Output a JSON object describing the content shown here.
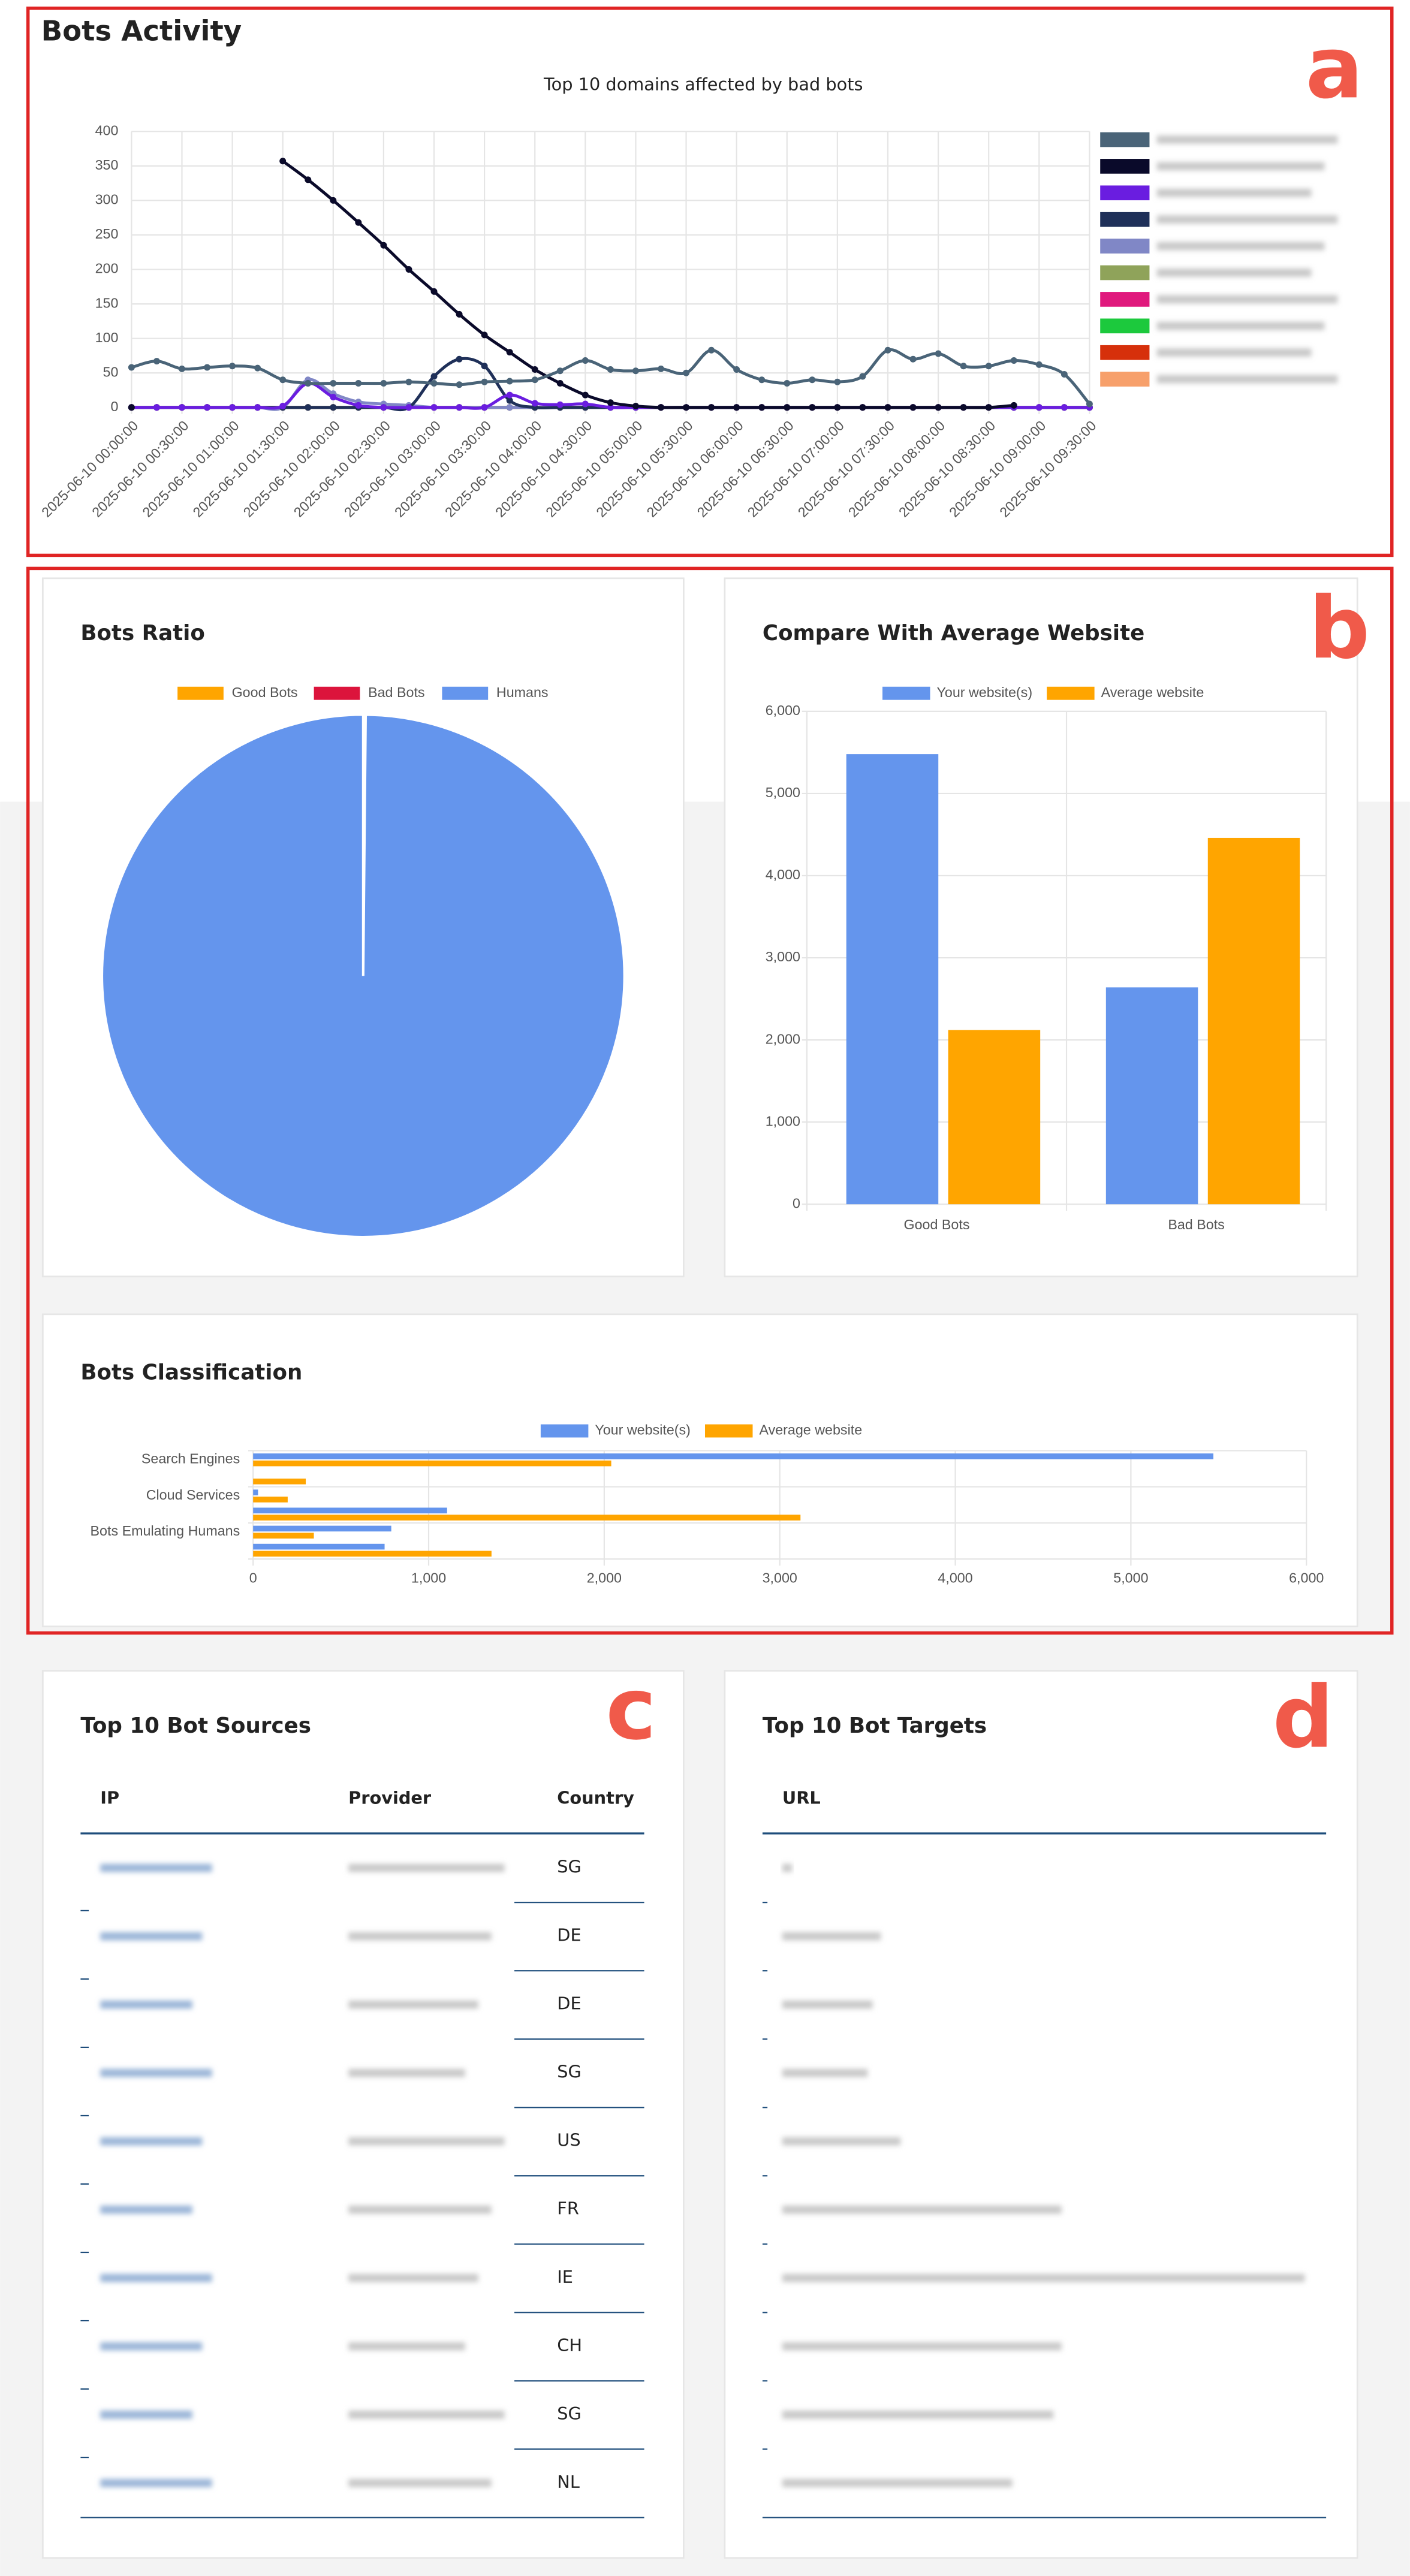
{
  "annotations": [
    "a",
    "b",
    "c",
    "d"
  ],
  "bots_activity": {
    "type": "line",
    "heading": "Bots Activity",
    "title": "Top 10 domains affected by bad bots",
    "categories": [
      "2025-06-10 00:00:00",
      null,
      "2025-06-10 00:30:00",
      null,
      "2025-06-10 01:00:00",
      null,
      "2025-06-10 01:30:00",
      null,
      "2025-06-10 02:00:00",
      null,
      "2025-06-10 02:30:00",
      null,
      "2025-06-10 03:00:00",
      null,
      "2025-06-10 03:30:00",
      null,
      "2025-06-10 04:00:00",
      null,
      "2025-06-10 04:30:00",
      null,
      "2025-06-10 05:00:00",
      null,
      "2025-06-10 05:30:00",
      null,
      "2025-06-10 06:00:00",
      null,
      "2025-06-10 06:30:00",
      null,
      "2025-06-10 07:00:00",
      null,
      "2025-06-10 07:30:00",
      null,
      "2025-06-10 08:00:00",
      null,
      "2025-06-10 08:30:00",
      null,
      "2025-06-10 09:00:00",
      null,
      "2025-06-10 09:30:00"
    ],
    "ylim": [
      0,
      400
    ],
    "yticks": [
      0,
      50,
      100,
      150,
      200,
      250,
      300,
      350,
      400
    ],
    "grid": true,
    "legend": "right",
    "series": [
      {
        "color": "#4a6478",
        "values": [
          58,
          67,
          56,
          58,
          60,
          57,
          40,
          35,
          35,
          35,
          35,
          37,
          35,
          33,
          37,
          38,
          40,
          53,
          68,
          55,
          53,
          56,
          50,
          83,
          55,
          40,
          35,
          40,
          37,
          45,
          83,
          70,
          78,
          60,
          60,
          68,
          62,
          48,
          5
        ]
      },
      {
        "color": "#0a0a2a",
        "values": [
          0,
          null,
          null,
          null,
          null,
          null,
          357,
          330,
          300,
          268,
          235,
          200,
          168,
          135,
          105,
          80,
          55,
          35,
          18,
          7,
          2,
          0,
          0,
          0,
          0,
          0,
          0,
          0,
          0,
          0,
          0,
          0,
          0,
          0,
          0,
          3,
          null,
          null,
          null
        ]
      },
      {
        "color": "#6a1de0",
        "values": [
          0,
          0,
          0,
          0,
          0,
          0,
          2,
          35,
          15,
          3,
          0,
          0,
          0,
          0,
          0,
          18,
          6,
          4,
          5,
          0,
          0,
          0,
          0,
          0,
          0,
          0,
          0,
          0,
          0,
          0,
          0,
          0,
          0,
          0,
          0,
          0,
          0,
          0,
          0
        ]
      },
      {
        "color": "#1f3059",
        "values": [
          0,
          0,
          0,
          0,
          0,
          0,
          0,
          0,
          0,
          0,
          0,
          0,
          45,
          70,
          60,
          10,
          0,
          0,
          0,
          0,
          0,
          0,
          0,
          0,
          0,
          0,
          0,
          0,
          0,
          0,
          0,
          0,
          0,
          0,
          0,
          0,
          0,
          0,
          0
        ]
      },
      {
        "color": "#8087c6",
        "values": [
          0,
          0,
          0,
          0,
          0,
          0,
          0,
          40,
          20,
          8,
          5,
          3,
          0,
          0,
          0,
          0,
          0,
          0,
          0,
          0,
          0,
          0,
          0,
          0,
          0,
          0,
          0,
          0,
          0,
          0,
          0,
          0,
          0,
          0,
          0,
          0,
          0,
          0,
          0
        ]
      },
      {
        "color": "#8fa35a",
        "values": [
          0,
          0,
          0,
          0,
          0,
          0,
          0,
          0,
          0,
          0,
          0,
          0,
          0,
          0,
          0,
          0,
          0,
          0,
          0,
          0,
          0,
          0,
          0,
          0,
          0,
          0,
          0,
          0,
          0,
          0,
          0,
          0,
          0,
          0,
          0,
          0,
          0,
          0,
          0
        ]
      },
      {
        "color": "#e0197d",
        "values": [
          0,
          0,
          0,
          0,
          0,
          0,
          0,
          0,
          0,
          0,
          0,
          0,
          0,
          0,
          0,
          0,
          0,
          0,
          0,
          0,
          0,
          0,
          0,
          0,
          0,
          0,
          0,
          0,
          0,
          0,
          0,
          0,
          0,
          0,
          0,
          0,
          0,
          0,
          0
        ]
      },
      {
        "color": "#1cc93d",
        "values": [
          0,
          0,
          0,
          0,
          0,
          0,
          0,
          0,
          0,
          0,
          0,
          0,
          0,
          0,
          0,
          0,
          0,
          0,
          0,
          0,
          0,
          0,
          0,
          0,
          0,
          0,
          0,
          0,
          0,
          0,
          0,
          0,
          0,
          0,
          0,
          0,
          0,
          0,
          0
        ]
      },
      {
        "color": "#d6300b",
        "values": [
          0,
          0,
          0,
          0,
          0,
          0,
          0,
          0,
          0,
          0,
          0,
          0,
          0,
          0,
          0,
          0,
          0,
          0,
          0,
          0,
          0,
          0,
          0,
          0,
          0,
          0,
          0,
          0,
          0,
          0,
          0,
          0,
          0,
          0,
          0,
          0,
          0,
          0,
          0
        ]
      },
      {
        "color": "#f7a06b",
        "values": [
          0,
          0,
          0,
          0,
          0,
          0,
          0,
          0,
          0,
          0,
          0,
          0,
          0,
          0,
          0,
          0,
          0,
          0,
          0,
          0,
          0,
          0,
          0,
          0,
          0,
          0,
          0,
          0,
          0,
          0,
          0,
          0,
          0,
          0,
          0,
          0,
          0,
          0,
          0
        ]
      }
    ]
  },
  "bots_ratio": {
    "type": "pie",
    "title": "Bots Ratio",
    "categories": [
      "Good Bots",
      "Bad Bots",
      "Humans"
    ],
    "colors": [
      "#ffa500",
      "#dc143c",
      "#6495ed"
    ],
    "values": [
      0.1,
      0.05,
      99.85
    ],
    "legend": "top"
  },
  "compare": {
    "type": "bar",
    "title": "Compare With Average Website",
    "categories": [
      "Good Bots",
      "Bad Bots"
    ],
    "series": [
      {
        "name": "Your website(s)",
        "color": "#6495ed",
        "values": [
          5480,
          2640
        ]
      },
      {
        "name": "Average website",
        "color": "#ffa500",
        "values": [
          2120,
          4460
        ]
      }
    ],
    "ylim": [
      0,
      6000
    ],
    "yticks": [
      0,
      {
        "value": 1000,
        "label": "1,000"
      },
      {
        "value": 2000,
        "label": "2,000"
      },
      {
        "value": 3000,
        "label": "3,000"
      },
      {
        "value": 4000,
        "label": "4,000"
      },
      {
        "value": 5000,
        "label": "5,000"
      },
      {
        "value": 6000,
        "label": "6,000"
      }
    ],
    "grid": true,
    "legend": "top"
  },
  "classification": {
    "type": "barh",
    "title": "Bots Classification",
    "categories": [
      "Search Engines",
      null,
      "Cloud Services",
      null,
      "Bots Emulating Humans",
      null
    ],
    "series": [
      {
        "name": "Your website(s)",
        "color": "#6495ed",
        "values": [
          5470,
          0,
          28,
          1105,
          787,
          749
        ]
      },
      {
        "name": "Average website",
        "color": "#ffa500",
        "values": [
          2040,
          300,
          197,
          3118,
          346,
          1358
        ]
      }
    ],
    "xlim": [
      0,
      6000
    ],
    "xticks": [
      0,
      {
        "value": 1000,
        "label": "1,000"
      },
      {
        "value": 2000,
        "label": "2,000"
      },
      {
        "value": 3000,
        "label": "3,000"
      },
      {
        "value": 4000,
        "label": "4,000"
      },
      {
        "value": 5000,
        "label": "5,000"
      },
      {
        "value": 6000,
        "label": "6,000"
      }
    ],
    "grid": true,
    "legend": "top"
  },
  "sources": {
    "title": "Top 10 Bot Sources",
    "columns": [
      "IP",
      "Provider",
      "Country"
    ],
    "rows": [
      {
        "country": "SG"
      },
      {
        "country": "DE"
      },
      {
        "country": "DE"
      },
      {
        "country": "SG"
      },
      {
        "country": "US"
      },
      {
        "country": "FR"
      },
      {
        "country": "IE"
      },
      {
        "country": "CH"
      },
      {
        "country": "SG"
      },
      {
        "country": "NL"
      }
    ]
  },
  "targets": {
    "title": "Top 10 Bot Targets",
    "columns": [
      "URL"
    ]
  }
}
